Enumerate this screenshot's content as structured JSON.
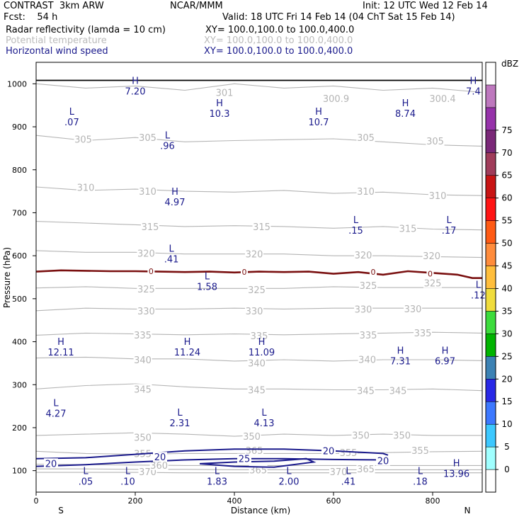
{
  "header": {
    "model": "CONTRAST  3km ARW",
    "org": "NCAR/MMM",
    "init": "Init: 12 UTC Wed 12 Feb 14",
    "fcst": "Fcst:    54 h",
    "valid": "Valid: 18 UTC Fri 14 Feb 14 (04 ChT Sat 15 Feb 14)",
    "fields": [
      {
        "name": "Radar reflectivity (lamda = 10 cm)",
        "xy": "XY= 100.0,100.0 to 100.0,400.0"
      },
      {
        "name": "Potential temperature",
        "xy": "XY= 100.0,100.0 to 100.0,400.0"
      },
      {
        "name": "Horizontal wind speed",
        "xy": "XY= 100.0,100.0 to 100.0,400.0"
      }
    ]
  },
  "colors": {
    "theta": "#b4b4b4",
    "wind": "#1a1a8c",
    "zero_line": "#7a1010",
    "ground": "#000000",
    "annot": "#1a1a8c"
  },
  "chart_data": {
    "type": "cross-section contour",
    "xlabel": "Distance (km)",
    "ylabel": "Pressure (hPa)",
    "xlim": [
      0,
      900
    ],
    "ylim": [
      1050,
      50
    ],
    "x_ticks": [
      0,
      200,
      400,
      600,
      800
    ],
    "y_ticks": [
      100,
      200,
      300,
      400,
      500,
      600,
      700,
      800,
      900,
      1000
    ],
    "left_end_label": "S",
    "right_end_label": "N",
    "colorbar": {
      "unit": "dBZ",
      "levels": [
        0,
        5,
        10,
        15,
        20,
        25,
        30,
        35,
        40,
        45,
        50,
        55,
        60,
        65,
        70,
        75
      ],
      "colors": [
        "#ffffff",
        "#a0ffff",
        "#3cc8ff",
        "#3c78ff",
        "#2828e6",
        "#3c82b4",
        "#00b400",
        "#3cdc3c",
        "#f0dc3c",
        "#ffbe3c",
        "#ff8c3c",
        "#ff5a14",
        "#ff1414",
        "#c81414",
        "#a03c5a",
        "#7a2878",
        "#9632aa",
        "#be78be",
        "#ffffff"
      ]
    },
    "theta_contours": [
      {
        "level": 300,
        "p": [
          1000,
          990,
          995,
          985,
          1000,
          990,
          995,
          985,
          990,
          980
        ]
      },
      {
        "level": 305,
        "p": [
          880,
          868,
          875,
          865,
          868,
          870,
          872,
          865,
          858,
          855
        ]
      },
      {
        "level": 310,
        "p": [
          760,
          752,
          755,
          750,
          748,
          752,
          745,
          748,
          742,
          740
        ]
      },
      {
        "level": 315,
        "p": [
          680,
          676,
          672,
          668,
          670,
          668,
          664,
          668,
          662,
          660
        ]
      },
      {
        "level": 320,
        "p": [
          612,
          608,
          608,
          604,
          604,
          604,
          600,
          600,
          598,
          596
        ]
      },
      {
        "level": 325,
        "p": [
          525,
          528,
          524,
          524,
          524,
          524,
          528,
          526,
          526,
          526
        ]
      },
      {
        "level": 330,
        "p": [
          472,
          478,
          476,
          476,
          478,
          476,
          478,
          478,
          478,
          478
        ]
      },
      {
        "level": 335,
        "p": [
          415,
          420,
          418,
          416,
          418,
          416,
          418,
          420,
          422,
          420
        ]
      },
      {
        "level": 340,
        "p": [
          362,
          364,
          360,
          360,
          355,
          358,
          355,
          358,
          358,
          356
        ]
      },
      {
        "level": 345,
        "p": [
          290,
          298,
          302,
          295,
          290,
          290,
          288,
          288,
          290,
          286
        ]
      },
      {
        "level": 350,
        "p": [
          182,
          185,
          188,
          185,
          180,
          185,
          182,
          185,
          182,
          182
        ]
      },
      {
        "level": 355,
        "p": [
          145,
          140,
          138,
          140,
          140,
          140,
          140,
          142,
          144,
          145
        ]
      },
      {
        "level": 360,
        "p": [
          115,
          114,
          113,
          112,
          112,
          112,
          112,
          112,
          112,
          112
        ]
      },
      {
        "level": 365,
        "p": [
          104,
          104,
          103,
          103,
          102,
          102,
          102,
          102,
          102,
          102
        ]
      },
      {
        "level": 370,
        "p": [
          96,
          96,
          96,
          95,
          95,
          95,
          95,
          95,
          95,
          95
        ]
      }
    ],
    "theta_labels": [
      {
        "text": "370",
        "x": 225,
        "p": 98
      },
      {
        "text": "370",
        "x": 610,
        "p": 98
      },
      {
        "text": "360",
        "x": 248,
        "p": 113
      },
      {
        "text": "365",
        "x": 448,
        "p": 102
      },
      {
        "text": "365",
        "x": 665,
        "p": 104
      },
      {
        "text": "365",
        "x": 440,
        "p": 147
      },
      {
        "text": "355",
        "x": 215,
        "p": 140
      },
      {
        "text": "355",
        "x": 630,
        "p": 142
      },
      {
        "text": "355",
        "x": 775,
        "p": 147
      },
      {
        "text": "350",
        "x": 215,
        "p": 178
      },
      {
        "text": "350",
        "x": 435,
        "p": 180
      },
      {
        "text": "350",
        "x": 655,
        "p": 183
      },
      {
        "text": "350",
        "x": 738,
        "p": 183
      },
      {
        "text": "345",
        "x": 215,
        "p": 290
      },
      {
        "text": "345",
        "x": 445,
        "p": 288
      },
      {
        "text": "345",
        "x": 665,
        "p": 286
      },
      {
        "text": "345",
        "x": 730,
        "p": 286
      },
      {
        "text": "340",
        "x": 215,
        "p": 358
      },
      {
        "text": "340",
        "x": 445,
        "p": 351
      },
      {
        "text": "340",
        "x": 668,
        "p": 359
      },
      {
        "text": "335",
        "x": 215,
        "p": 416
      },
      {
        "text": "335",
        "x": 450,
        "p": 414
      },
      {
        "text": "335",
        "x": 670,
        "p": 416
      },
      {
        "text": "335",
        "x": 780,
        "p": 421
      },
      {
        "text": "330",
        "x": 222,
        "p": 472
      },
      {
        "text": "330",
        "x": 440,
        "p": 472
      },
      {
        "text": "330",
        "x": 660,
        "p": 476
      },
      {
        "text": "330",
        "x": 760,
        "p": 477
      },
      {
        "text": "325",
        "x": 222,
        "p": 523
      },
      {
        "text": "325",
        "x": 445,
        "p": 521
      },
      {
        "text": "325",
        "x": 670,
        "p": 531
      },
      {
        "text": "325",
        "x": 800,
        "p": 537
      },
      {
        "text": "320",
        "x": 222,
        "p": 606
      },
      {
        "text": "320",
        "x": 440,
        "p": 604
      },
      {
        "text": "320",
        "x": 660,
        "p": 602
      },
      {
        "text": "320",
        "x": 798,
        "p": 600
      },
      {
        "text": "315",
        "x": 230,
        "p": 668
      },
      {
        "text": "315",
        "x": 455,
        "p": 668
      },
      {
        "text": "315",
        "x": 750,
        "p": 664
      },
      {
        "text": "310",
        "x": 100,
        "p": 759
      },
      {
        "text": "310",
        "x": 225,
        "p": 750
      },
      {
        "text": "310",
        "x": 665,
        "p": 750
      },
      {
        "text": "310",
        "x": 810,
        "p": 740
      },
      {
        "text": "305",
        "x": 95,
        "p": 871
      },
      {
        "text": "305",
        "x": 225,
        "p": 875
      },
      {
        "text": "305",
        "x": 665,
        "p": 875
      },
      {
        "text": "305",
        "x": 805,
        "p": 867
      },
      {
        "text": "301",
        "x": 380,
        "p": 980
      },
      {
        "text": "300.9",
        "x": 605,
        "p": 966
      },
      {
        "text": "300.4",
        "x": 820,
        "p": 966
      }
    ],
    "wind_contours": [
      {
        "level": 20,
        "x": [
          0,
          100,
          200,
          300,
          400,
          500,
          600,
          700
        ],
        "p": [
          110,
          114,
          120,
          125,
          128,
          128,
          126,
          125
        ]
      },
      {
        "level": 20,
        "x": [
          0,
          100,
          200,
          300,
          400,
          500,
          600,
          700,
          710
        ],
        "p": [
          128,
          130,
          138,
          146,
          150,
          150,
          146,
          140,
          136
        ]
      },
      {
        "level": 25,
        "x": [
          330,
          400,
          480,
          560,
          545,
          480,
          400,
          330
        ],
        "p": [
          116,
          110,
          108,
          120,
          128,
          122,
          120,
          116
        ]
      }
    ],
    "wind_labels": [
      {
        "text": "20",
        "x": 30,
        "p": 117
      },
      {
        "text": "20",
        "x": 250,
        "p": 132
      },
      {
        "text": "25",
        "x": 420,
        "p": 128
      },
      {
        "text": "20",
        "x": 590,
        "p": 146
      },
      {
        "text": "20",
        "x": 700,
        "p": 123
      }
    ],
    "zero_dbz_line": {
      "x": [
        0,
        50,
        100,
        150,
        200,
        250,
        300,
        350,
        400,
        450,
        500,
        550,
        600,
        650,
        700,
        750,
        800,
        850,
        880,
        900
      ],
      "p": [
        563,
        566,
        565,
        564,
        564,
        563,
        562,
        563,
        561,
        563,
        562,
        563,
        558,
        562,
        556,
        564,
        560,
        556,
        548,
        548
      ],
      "labels": [
        {
          "text": "0",
          "x": 232,
          "p": 564
        },
        {
          "text": "0",
          "x": 420,
          "p": 562
        },
        {
          "text": "0",
          "x": 680,
          "p": 562
        },
        {
          "text": "0",
          "x": 795,
          "p": 558
        }
      ]
    },
    "ground_line_p": 1008,
    "extrema": [
      {
        "kind": "L",
        "value": ".05",
        "x": 100,
        "p": 92
      },
      {
        "kind": "L",
        "value": ".10",
        "x": 185,
        "p": 92
      },
      {
        "kind": "L",
        "value": "1.83",
        "x": 365,
        "p": 92
      },
      {
        "kind": "L",
        "value": "2.00",
        "x": 510,
        "p": 92
      },
      {
        "kind": "L",
        "value": ".41",
        "x": 630,
        "p": 92
      },
      {
        "kind": "L",
        "value": ".18",
        "x": 775,
        "p": 92
      },
      {
        "kind": "H",
        "value": "13.96",
        "x": 848,
        "p": 110
      },
      {
        "kind": "L",
        "value": "4.27",
        "x": 40,
        "p": 250
      },
      {
        "kind": "L",
        "value": "2.31",
        "x": 290,
        "p": 228
      },
      {
        "kind": "L",
        "value": "4.13",
        "x": 460,
        "p": 228
      },
      {
        "kind": "H",
        "value": "12.11",
        "x": 50,
        "p": 393
      },
      {
        "kind": "H",
        "value": "11.24",
        "x": 305,
        "p": 393
      },
      {
        "kind": "H",
        "value": "11.09",
        "x": 455,
        "p": 393
      },
      {
        "kind": "H",
        "value": "7.31",
        "x": 735,
        "p": 372
      },
      {
        "kind": "H",
        "value": "6.97",
        "x": 825,
        "p": 372
      },
      {
        "kind": "L",
        "value": ".12",
        "x": 892,
        "p": 525
      },
      {
        "kind": "L",
        "value": "1.58",
        "x": 345,
        "p": 545
      },
      {
        "kind": "L",
        "value": ".41",
        "x": 273,
        "p": 609
      },
      {
        "kind": "L",
        "value": ".15",
        "x": 645,
        "p": 676
      },
      {
        "kind": "L",
        "value": ".17",
        "x": 833,
        "p": 676
      },
      {
        "kind": "H",
        "value": "4.97",
        "x": 280,
        "p": 742
      },
      {
        "kind": "L",
        "value": ".96",
        "x": 265,
        "p": 873
      },
      {
        "kind": "L",
        "value": ".07",
        "x": 72,
        "p": 928
      },
      {
        "kind": "H",
        "value": "10.3",
        "x": 370,
        "p": 948
      },
      {
        "kind": "H",
        "value": "10.7",
        "x": 570,
        "p": 928
      },
      {
        "kind": "H",
        "value": "8.74",
        "x": 745,
        "p": 948
      },
      {
        "kind": "H",
        "value": "7.20",
        "x": 200,
        "p": 1000
      },
      {
        "kind": "H",
        "value": "7.4",
        "x": 882,
        "p": 1000
      }
    ]
  }
}
